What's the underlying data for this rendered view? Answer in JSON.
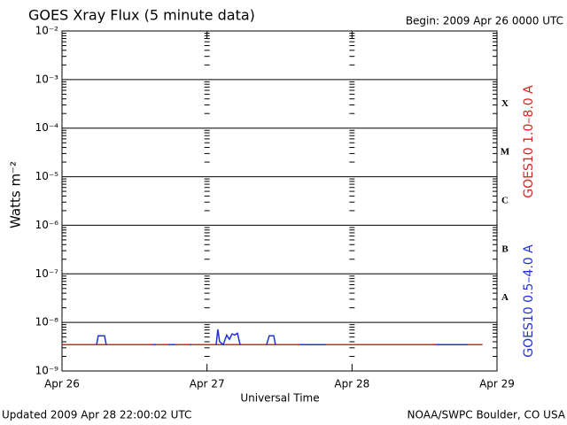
{
  "chart_data": {
    "type": "line",
    "title": "GOES Xray Flux (5 minute data)",
    "subtitle": "Begin:  2009 Apr 26 0000 UTC",
    "ylabel": "Watts m⁻²",
    "xlabel": "Universal Time",
    "footer_left": "Updated 2009 Apr 28 22:00:02 UTC",
    "footer_right": "NOAA/SWPC Boulder, CO USA",
    "log_y": true,
    "grid": true,
    "ylim": [
      1e-09,
      0.01
    ],
    "yticks": [
      {
        "value": 1e-09,
        "label": "10⁻⁹"
      },
      {
        "value": 1e-08,
        "label": "10⁻⁸"
      },
      {
        "value": 1e-07,
        "label": "10⁻⁷"
      },
      {
        "value": 1e-06,
        "label": "10⁻⁶"
      },
      {
        "value": 1e-05,
        "label": "10⁻⁵"
      },
      {
        "value": 0.0001,
        "label": "10⁻⁴"
      },
      {
        "value": 0.001,
        "label": "10⁻³"
      },
      {
        "value": 0.01,
        "label": "10⁻²"
      }
    ],
    "xlim": [
      0,
      3
    ],
    "xticks": [
      {
        "value": 0,
        "label": "Apr 26"
      },
      {
        "value": 1,
        "label": "Apr 27"
      },
      {
        "value": 2,
        "label": "Apr 28"
      },
      {
        "value": 3,
        "label": "Apr 29"
      }
    ],
    "class_labels": [
      {
        "value": 1e-08,
        "label": "A"
      },
      {
        "value": 1e-07,
        "label": "B"
      },
      {
        "value": 1e-06,
        "label": "C"
      },
      {
        "value": 1e-05,
        "label": "M"
      },
      {
        "value": 0.0001,
        "label": "X"
      }
    ],
    "series": [
      {
        "name": "GOES10 1.0–8.0 A",
        "color": "#e02020",
        "x": [
          0,
          0.5,
          1.0,
          1.5,
          2.0,
          2.5,
          2.9
        ],
        "values": [
          3.5e-09,
          3.5e-09,
          3.5e-09,
          3.5e-09,
          3.5e-09,
          3.5e-09,
          3.5e-09
        ]
      },
      {
        "name": "GOES10 0.5–4.0 A",
        "color": "#2030e0",
        "x": [
          0.238,
          0.25,
          0.293,
          0.305,
          0.5,
          0.623,
          0.648,
          0.7,
          0.733,
          0.782,
          0.85,
          0.88,
          0.892,
          1.0,
          1.063,
          1.075,
          1.087,
          1.112,
          1.136,
          1.155,
          1.173,
          1.191,
          1.21,
          1.228,
          1.3,
          1.411,
          1.429,
          1.46,
          1.472,
          1.55,
          1.637,
          1.82,
          2.2,
          2.578,
          2.798
        ],
        "values": [
          3.5e-09,
          5.3e-09,
          5.3e-09,
          3.5e-09,
          null,
          3.5e-09,
          3.5e-09,
          null,
          3.5e-09,
          3.5e-09,
          null,
          3.5e-09,
          3.5e-09,
          null,
          3.5e-09,
          7.2e-09,
          4e-09,
          3.5e-09,
          5.5e-09,
          4.5e-09,
          5.8e-09,
          5.5e-09,
          6e-09,
          3.5e-09,
          null,
          3.5e-09,
          5.3e-09,
          5.3e-09,
          3.5e-09,
          null,
          3.5e-09,
          3.5e-09,
          null,
          3.5e-09,
          3.5e-09
        ]
      }
    ]
  }
}
